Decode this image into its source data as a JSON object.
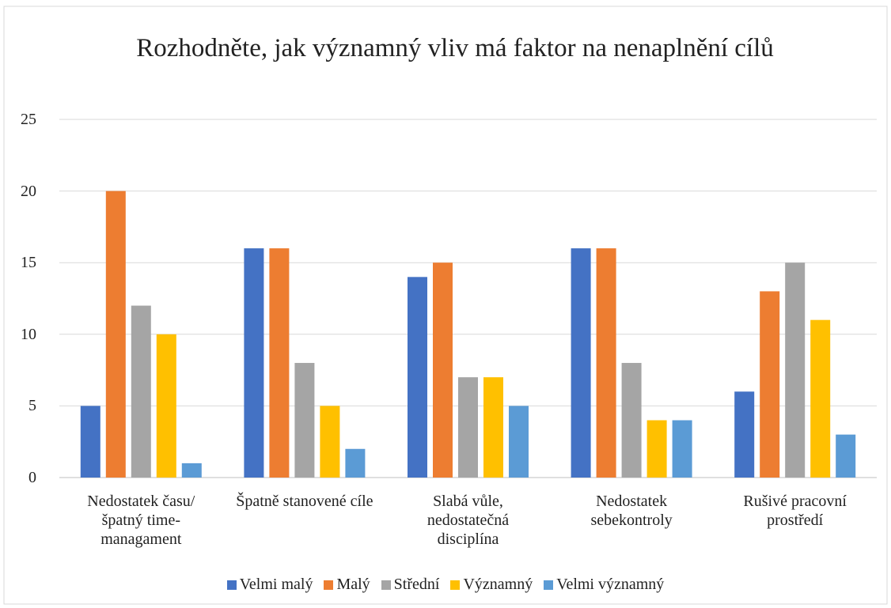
{
  "chart_data": {
    "type": "bar",
    "title": "Rozhodněte, jak významný vliv má faktor na nenaplnění cílů",
    "categories": [
      "Nedostatek času/špatný time-managament",
      "Špatně stanovené cíle",
      "Slabá vůle, nedostatečná disciplína",
      "Nedostatek sebekontroly",
      "Rušivé pracovní prostředí"
    ],
    "series": [
      {
        "name": "Velmi malý",
        "color": "#4472c4",
        "values": [
          5,
          16,
          14,
          16,
          6
        ]
      },
      {
        "name": "Malý",
        "color": "#ed7d31",
        "values": [
          20,
          16,
          15,
          16,
          13
        ]
      },
      {
        "name": "Střední",
        "color": "#a5a5a5",
        "values": [
          12,
          8,
          7,
          8,
          15
        ]
      },
      {
        "name": "Významný",
        "color": "#ffc000",
        "values": [
          10,
          5,
          7,
          4,
          11
        ]
      },
      {
        "name": "Velmi významný",
        "color": "#5b9bd5",
        "values": [
          1,
          2,
          5,
          4,
          3
        ]
      }
    ],
    "ylim": [
      0,
      25
    ],
    "yticks": [
      0,
      5,
      10,
      15,
      20,
      25
    ],
    "grid": true,
    "legend": "bottom"
  }
}
